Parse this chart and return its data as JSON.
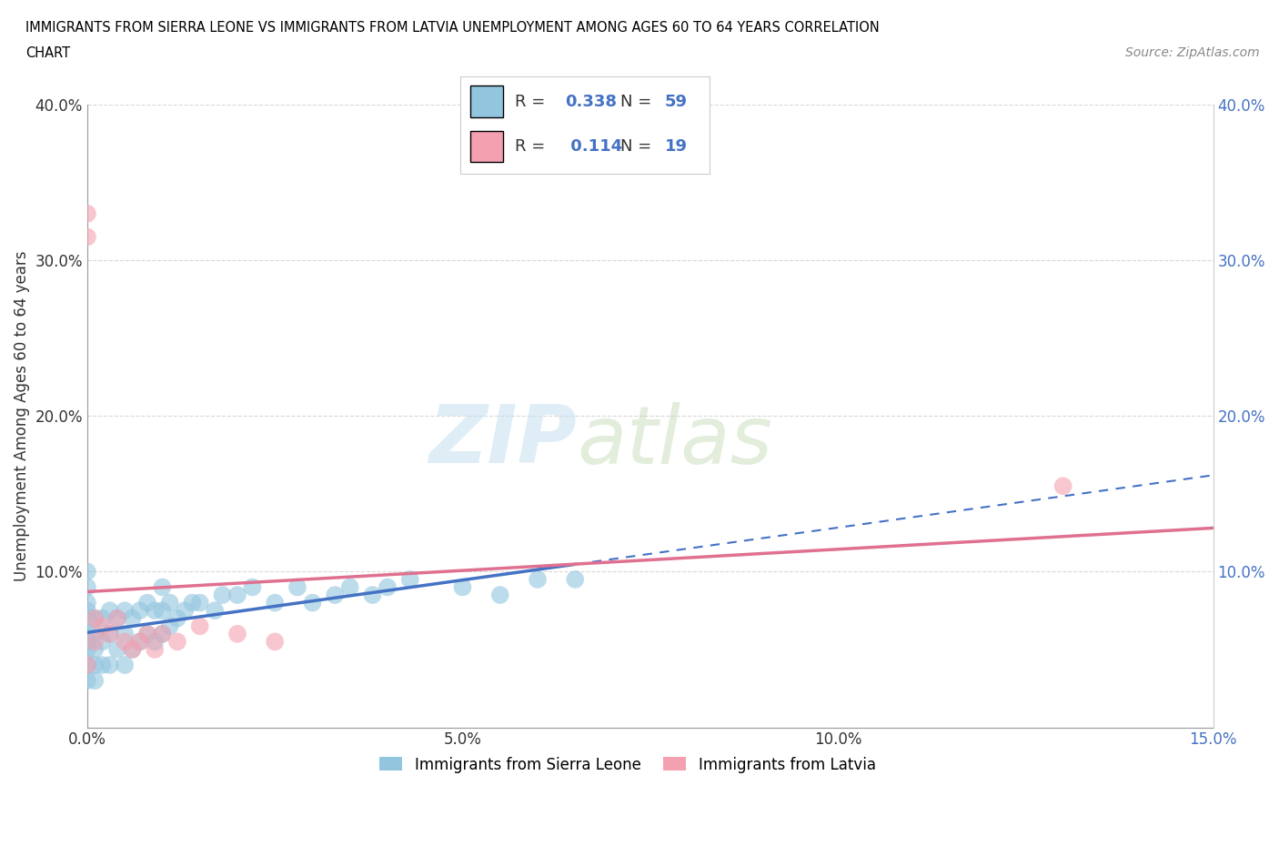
{
  "title_line1": "IMMIGRANTS FROM SIERRA LEONE VS IMMIGRANTS FROM LATVIA UNEMPLOYMENT AMONG AGES 60 TO 64 YEARS CORRELATION",
  "title_line2": "CHART",
  "source_text": "Source: ZipAtlas.com",
  "ylabel": "Unemployment Among Ages 60 to 64 years",
  "xmin": 0.0,
  "xmax": 0.15,
  "ymin": 0.0,
  "ymax": 0.4,
  "xticks": [
    0.0,
    0.05,
    0.1,
    0.15
  ],
  "xtick_labels": [
    "0.0%",
    "5.0%",
    "10.0%",
    "15.0%"
  ],
  "yticks": [
    0.0,
    0.1,
    0.2,
    0.3,
    0.4
  ],
  "ytick_labels_left": [
    "",
    "10.0%",
    "20.0%",
    "30.0%",
    "40.0%"
  ],
  "ytick_labels_right": [
    "",
    "10.0%",
    "20.0%",
    "30.0%",
    "40.0%"
  ],
  "sierra_leone_color": "#92c5de",
  "latvia_color": "#f4a0b0",
  "sierra_leone_R": 0.338,
  "sierra_leone_N": 59,
  "latvia_R": 0.114,
  "latvia_N": 19,
  "legend1_label": "Immigrants from Sierra Leone",
  "legend2_label": "Immigrants from Latvia",
  "watermark_zip": "ZIP",
  "watermark_atlas": "atlas",
  "trendline_color_sl": "#4472c4",
  "trendline_color_lv": "#e07090",
  "background_color": "#ffffff",
  "grid_color": "#d8d8d8",
  "sierra_leone_x": [
    0.0,
    0.0,
    0.0,
    0.0,
    0.0,
    0.0,
    0.0,
    0.0,
    0.0,
    0.0,
    0.001,
    0.001,
    0.001,
    0.001,
    0.001,
    0.002,
    0.002,
    0.002,
    0.003,
    0.003,
    0.003,
    0.004,
    0.004,
    0.005,
    0.005,
    0.005,
    0.006,
    0.006,
    0.007,
    0.007,
    0.008,
    0.008,
    0.009,
    0.009,
    0.01,
    0.01,
    0.01,
    0.011,
    0.011,
    0.012,
    0.013,
    0.014,
    0.015,
    0.017,
    0.018,
    0.02,
    0.022,
    0.025,
    0.028,
    0.03,
    0.033,
    0.035,
    0.038,
    0.04,
    0.043,
    0.05,
    0.055,
    0.06,
    0.065
  ],
  "sierra_leone_y": [
    0.03,
    0.04,
    0.05,
    0.055,
    0.06,
    0.07,
    0.075,
    0.08,
    0.09,
    0.1,
    0.03,
    0.04,
    0.05,
    0.06,
    0.07,
    0.04,
    0.055,
    0.07,
    0.04,
    0.06,
    0.075,
    0.05,
    0.07,
    0.04,
    0.06,
    0.075,
    0.05,
    0.07,
    0.055,
    0.075,
    0.06,
    0.08,
    0.055,
    0.075,
    0.06,
    0.075,
    0.09,
    0.065,
    0.08,
    0.07,
    0.075,
    0.08,
    0.08,
    0.075,
    0.085,
    0.085,
    0.09,
    0.08,
    0.09,
    0.08,
    0.085,
    0.09,
    0.085,
    0.09,
    0.095,
    0.09,
    0.085,
    0.095,
    0.095
  ],
  "latvia_x": [
    0.0,
    0.0,
    0.0,
    0.001,
    0.001,
    0.002,
    0.003,
    0.004,
    0.005,
    0.006,
    0.007,
    0.008,
    0.009,
    0.01,
    0.012,
    0.015,
    0.02,
    0.025,
    0.13
  ],
  "latvia_y": [
    0.04,
    0.33,
    0.315,
    0.055,
    0.07,
    0.065,
    0.06,
    0.07,
    0.055,
    0.05,
    0.055,
    0.06,
    0.05,
    0.06,
    0.055,
    0.065,
    0.06,
    0.055,
    0.155
  ]
}
